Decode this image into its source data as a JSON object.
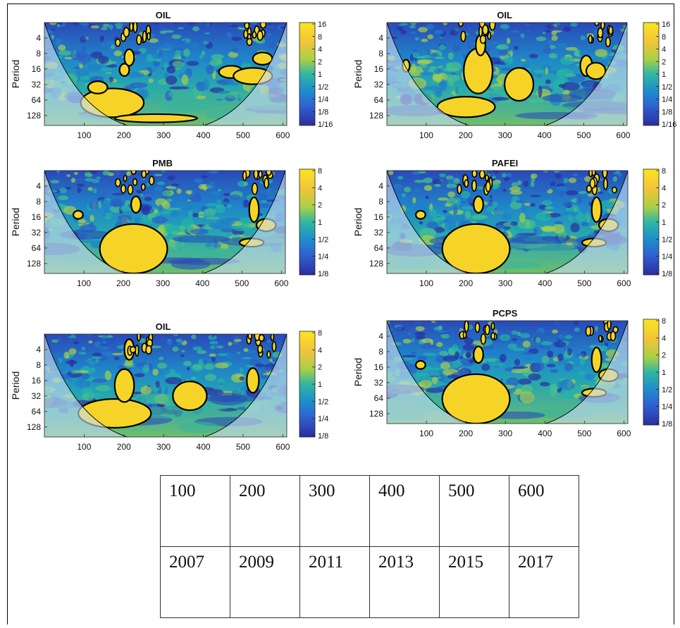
{
  "chart_data": [
    {
      "type": "heatmap",
      "title": "OIL",
      "ylabel": "Period",
      "x_ticks": [
        "100",
        "200",
        "300",
        "400",
        "500",
        "600"
      ],
      "y_ticks": [
        "4",
        "8",
        "16",
        "32",
        "64",
        "128"
      ],
      "colorbar_ticks": [
        "16",
        "8",
        "4",
        "2",
        "1",
        "1/2",
        "1/4",
        "1/8",
        "1/16"
      ]
    },
    {
      "type": "heatmap",
      "title": "OIL",
      "ylabel": "Period",
      "x_ticks": [
        "100",
        "200",
        "300",
        "400",
        "500",
        "600"
      ],
      "y_ticks": [
        "4",
        "8",
        "16",
        "32",
        "64",
        "128"
      ],
      "colorbar_ticks": [
        "16",
        "8",
        "4",
        "2",
        "1",
        "1/2",
        "1/4",
        "1/8",
        "1/16"
      ]
    },
    {
      "type": "heatmap",
      "title": "PMB",
      "ylabel": "Period",
      "x_ticks": [
        "100",
        "200",
        "300",
        "400",
        "500",
        "600"
      ],
      "y_ticks": [
        "4",
        "8",
        "16",
        "32",
        "64",
        "128"
      ],
      "colorbar_ticks": [
        "8",
        "4",
        "2",
        "1",
        "1/2",
        "1/4",
        "1/8"
      ]
    },
    {
      "type": "heatmap",
      "title": "PAFEI",
      "ylabel": "Period",
      "x_ticks": [
        "100",
        "200",
        "300",
        "400",
        "500",
        "600"
      ],
      "y_ticks": [
        "4",
        "8",
        "16",
        "32",
        "64",
        "128"
      ],
      "colorbar_ticks": [
        "8",
        "4",
        "2",
        "1",
        "1/2",
        "1/4",
        "1/8"
      ]
    },
    {
      "type": "heatmap",
      "title": "OIL",
      "ylabel": "Period",
      "x_ticks": [
        "100",
        "200",
        "300",
        "400",
        "500",
        "600"
      ],
      "y_ticks": [
        "4",
        "8",
        "16",
        "32",
        "64",
        "128"
      ],
      "colorbar_ticks": [
        "8",
        "4",
        "2",
        "1",
        "1/2",
        "1/4",
        "1/8"
      ]
    },
    {
      "type": "heatmap",
      "title": "PCPS",
      "ylabel": "Period",
      "x_ticks": [
        "100",
        "200",
        "300",
        "400",
        "500",
        "600"
      ],
      "y_ticks": [
        "4",
        "8",
        "16",
        "32",
        "64",
        "128"
      ],
      "colorbar_ticks": [
        "8",
        "4",
        "2",
        "1",
        "1/2",
        "1/4",
        "1/8"
      ]
    }
  ],
  "mapping_table": {
    "rows": [
      [
        "100",
        "200",
        "300",
        "400",
        "500",
        "600"
      ],
      [
        "2007",
        "2009",
        "2011",
        "2013",
        "2015",
        "2017"
      ]
    ]
  },
  "colors": {
    "low": "#2b2ea0",
    "mid_low": "#1f7fc9",
    "mid": "#23b4a8",
    "mid_high": "#a7cf4a",
    "high": "#f6d427",
    "contour": "#000000",
    "coi_line": "#000000",
    "coi_shade": "#c8dcef"
  }
}
